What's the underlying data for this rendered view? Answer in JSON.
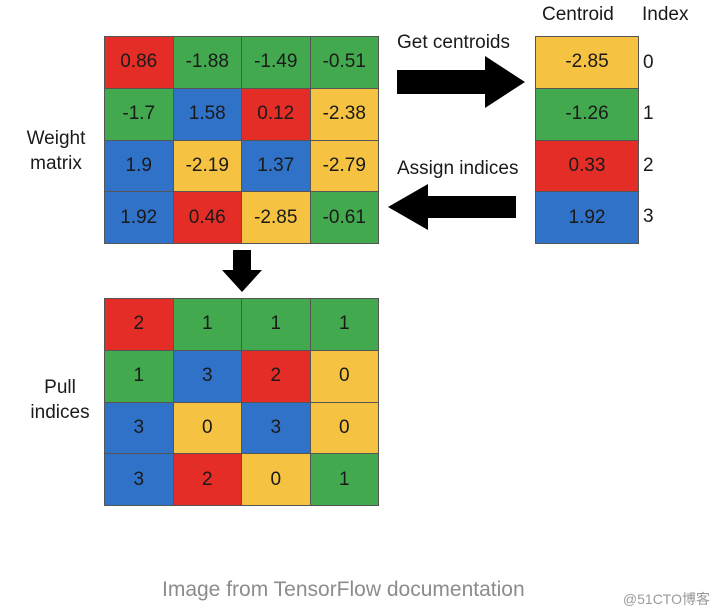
{
  "colors": {
    "red": "#e52d27",
    "green": "#43a94f",
    "blue": "#3072c7",
    "yellow": "#f5c242"
  },
  "labels": {
    "weight_matrix_line1": "Weight",
    "weight_matrix_line2": "matrix",
    "pull_indices_line1": "Pull",
    "pull_indices_line2": "indices",
    "get_centroids": "Get centroids",
    "assign_indices": "Assign indices",
    "centroid_header": "Centroid",
    "index_header": "Index"
  },
  "weight_matrix": [
    [
      {
        "v": "0.86",
        "c": "red"
      },
      {
        "v": "-1.88",
        "c": "green"
      },
      {
        "v": "-1.49",
        "c": "green"
      },
      {
        "v": "-0.51",
        "c": "green"
      }
    ],
    [
      {
        "v": "-1.7",
        "c": "green"
      },
      {
        "v": "1.58",
        "c": "blue"
      },
      {
        "v": "0.12",
        "c": "red"
      },
      {
        "v": "-2.38",
        "c": "yellow"
      }
    ],
    [
      {
        "v": "1.9",
        "c": "blue"
      },
      {
        "v": "-2.19",
        "c": "yellow"
      },
      {
        "v": "1.37",
        "c": "blue"
      },
      {
        "v": "-2.79",
        "c": "yellow"
      }
    ],
    [
      {
        "v": "1.92",
        "c": "blue"
      },
      {
        "v": "0.46",
        "c": "red"
      },
      {
        "v": "-2.85",
        "c": "yellow"
      },
      {
        "v": "-0.61",
        "c": "green"
      }
    ]
  ],
  "centroids": [
    {
      "v": "-2.85",
      "c": "yellow",
      "index": "0"
    },
    {
      "v": "-1.26",
      "c": "green",
      "index": "1"
    },
    {
      "v": "0.33",
      "c": "red",
      "index": "2"
    },
    {
      "v": "1.92",
      "c": "blue",
      "index": "3"
    }
  ],
  "pull_indices": [
    [
      {
        "v": "2",
        "c": "red"
      },
      {
        "v": "1",
        "c": "green"
      },
      {
        "v": "1",
        "c": "green"
      },
      {
        "v": "1",
        "c": "green"
      }
    ],
    [
      {
        "v": "1",
        "c": "green"
      },
      {
        "v": "3",
        "c": "blue"
      },
      {
        "v": "2",
        "c": "red"
      },
      {
        "v": "0",
        "c": "yellow"
      }
    ],
    [
      {
        "v": "3",
        "c": "blue"
      },
      {
        "v": "0",
        "c": "yellow"
      },
      {
        "v": "3",
        "c": "blue"
      },
      {
        "v": "0",
        "c": "yellow"
      }
    ],
    [
      {
        "v": "3",
        "c": "blue"
      },
      {
        "v": "2",
        "c": "red"
      },
      {
        "v": "0",
        "c": "yellow"
      },
      {
        "v": "1",
        "c": "green"
      }
    ]
  ],
  "caption": "Image from TensorFlow documentation",
  "watermark": "@51CTO博客",
  "icons": {
    "right_arrow": "arrow-right-icon",
    "left_arrow": "arrow-left-icon",
    "down_arrow": "arrow-down-icon"
  }
}
